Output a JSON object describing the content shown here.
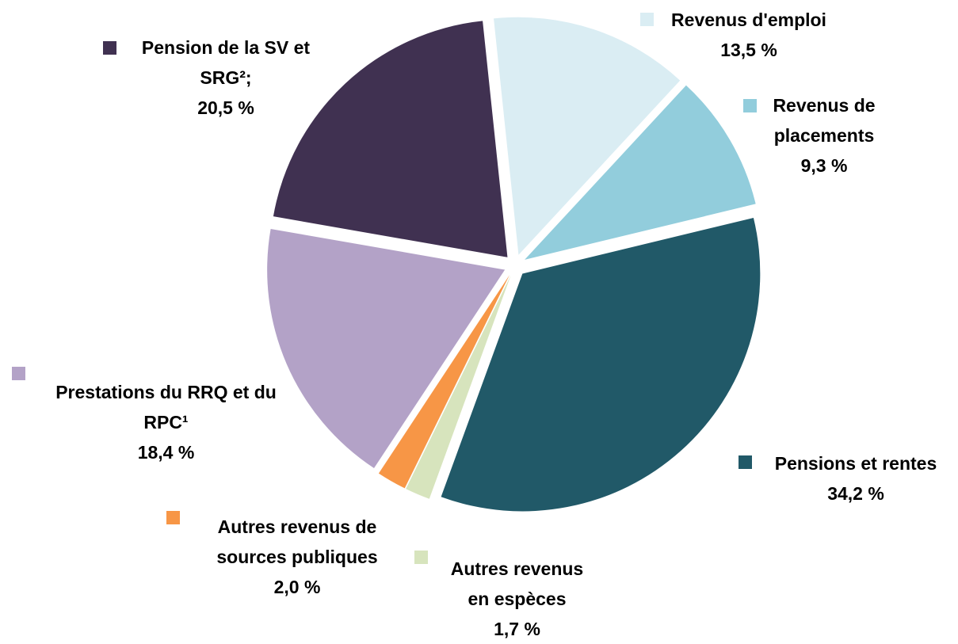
{
  "chart_data": {
    "type": "pie",
    "categories": [
      "Revenus d'emploi",
      "Revenus de placements",
      "Pensions et rentes",
      "Autres revenus en espèces",
      "Autres revenus de sources publiques",
      "Prestations du RRQ et du RPC¹",
      "Pension de la SV et SRG²;"
    ],
    "values": [
      13.5,
      9.3,
      34.2,
      1.7,
      2.0,
      18.4,
      20.5
    ],
    "value_labels": [
      "13,5 %",
      "9,3 %",
      "34,2 %",
      "1,7 %",
      "2,0 %",
      "18,4 %",
      "20,5 %"
    ],
    "colors": [
      "#daedf3",
      "#92cddc",
      "#215968",
      "#d7e4bd",
      "#f79646",
      "#b3a2c7",
      "#403151"
    ]
  }
}
